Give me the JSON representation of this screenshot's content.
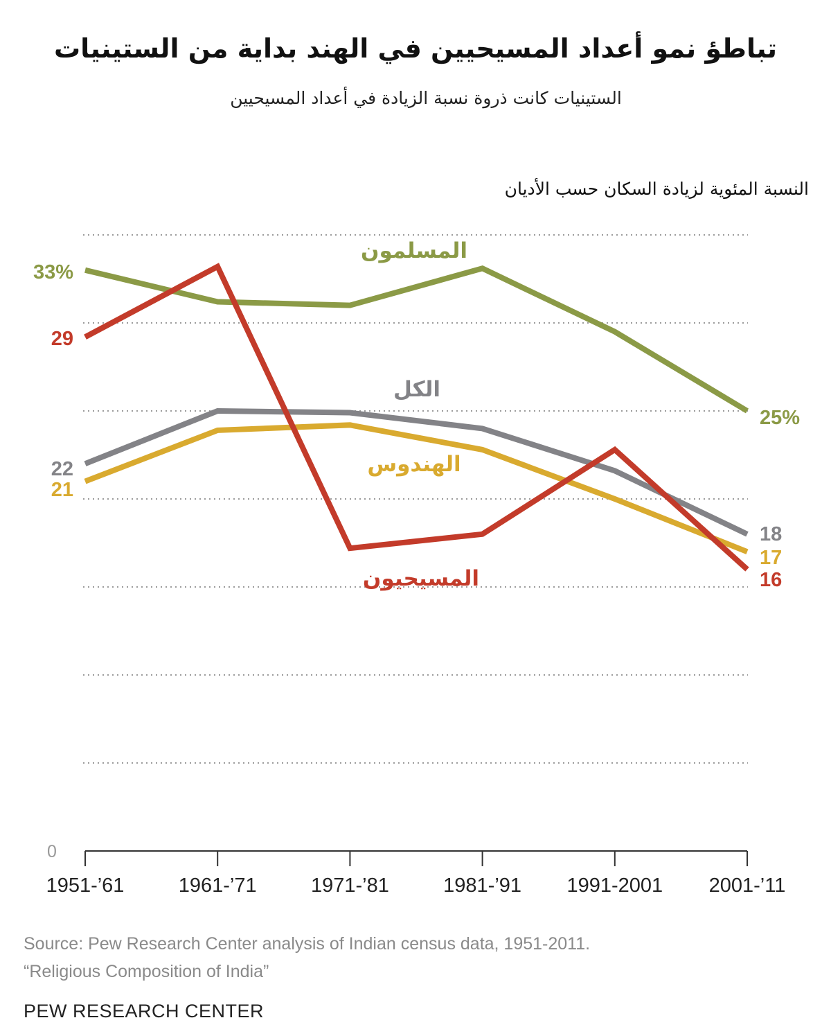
{
  "title": "تباطؤ نمو أعداد المسيحيين في الهند بداية من الستينيات",
  "subtitle": "الستينيات كانت ذروة نسبة الزيادة في أعداد المسيحيين",
  "footer": {
    "source_line1": "Source: Pew Research Center analysis of Indian census data, 1951-2011.",
    "source_line2": "“Religious Composition of India”",
    "logo": "PEW RESEARCH CENTER"
  },
  "chart_data": {
    "type": "line",
    "title": "تباطؤ نمو أعداد المسيحيين في الهند بداية من الستينيات",
    "subtitle": "الستينيات كانت ذروة نسبة الزيادة في أعداد المسيحيين",
    "ylabel": "النسبة المئوية لزيادة السكان حسب الأديان",
    "xlabel": "",
    "x": [
      "1951-’61",
      "1961-’71",
      "1971-’81",
      "1981-’91",
      "1991-2001",
      "2001-’11"
    ],
    "ylim": [
      0,
      35
    ],
    "yticks": [
      0,
      5,
      10,
      15,
      20,
      25,
      30,
      35
    ],
    "ytick_labels_shown": [
      "0"
    ],
    "grid": true,
    "series": [
      {
        "name": "المسلمون",
        "color": "#8b9a46",
        "values": [
          33,
          31.2,
          31,
          33.1,
          29.5,
          25
        ],
        "start_label": "33%",
        "end_label": "25%"
      },
      {
        "name": "الكل",
        "color": "#838387",
        "values": [
          22,
          25,
          24.9,
          24,
          21.6,
          18
        ],
        "start_label": "22",
        "end_label": "18"
      },
      {
        "name": "الهندوس",
        "color": "#d9aa2f",
        "values": [
          21,
          23.9,
          24.2,
          22.8,
          20,
          17
        ],
        "start_label": "21",
        "end_label": "17"
      },
      {
        "name": "المسيحيون",
        "color": "#c33b2a",
        "values": [
          29.2,
          33.2,
          17.2,
          18,
          22.8,
          16
        ],
        "start_label": "29",
        "end_label": "16"
      }
    ]
  }
}
